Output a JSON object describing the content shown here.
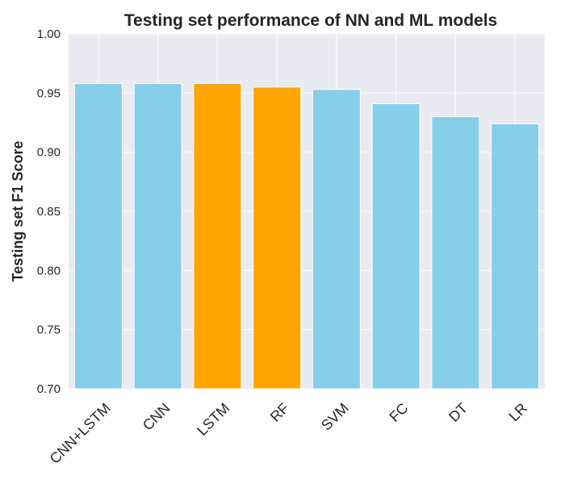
{
  "chart_data": {
    "type": "bar",
    "title": "Testing set performance of NN and ML models",
    "xlabel": "",
    "ylabel": "Testing set F1 Score",
    "categories": [
      "CNN+LSTM",
      "CNN",
      "LSTM",
      "RF",
      "SVM",
      "FC",
      "DT",
      "LR"
    ],
    "values": [
      0.958,
      0.958,
      0.958,
      0.955,
      0.953,
      0.941,
      0.93,
      0.924
    ],
    "bar_colors": [
      "#87CEEB",
      "#87CEEB",
      "#FFA500",
      "#FFA500",
      "#87CEEB",
      "#87CEEB",
      "#87CEEB",
      "#87CEEB"
    ],
    "ylim": [
      0.7,
      1.0
    ],
    "yticks": [
      "0.70",
      "0.75",
      "0.80",
      "0.85",
      "0.90",
      "0.95",
      "1.00"
    ],
    "ytick_values": [
      0.7,
      0.75,
      0.8,
      0.85,
      0.9,
      0.95,
      1.0
    ],
    "grid": true,
    "background": "#EAEAF2",
    "grid_color": "#FFFFFF"
  }
}
